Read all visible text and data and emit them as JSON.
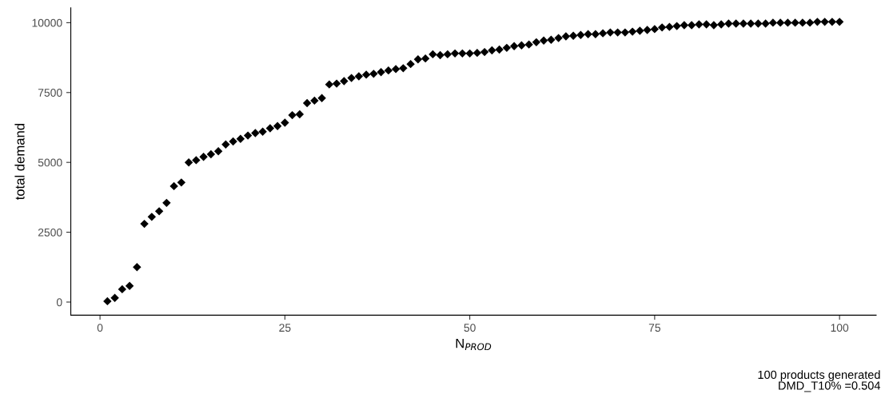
{
  "chart_data": {
    "type": "scatter",
    "xlabel": "N$_{PROD}$",
    "ylabel": "total demand",
    "x": [
      1,
      2,
      3,
      4,
      5,
      6,
      7,
      8,
      9,
      10,
      11,
      12,
      13,
      14,
      15,
      16,
      17,
      18,
      19,
      20,
      21,
      22,
      23,
      24,
      25,
      26,
      27,
      28,
      29,
      30,
      31,
      32,
      33,
      34,
      35,
      36,
      37,
      38,
      39,
      40,
      41,
      42,
      43,
      44,
      45,
      46,
      47,
      48,
      49,
      50,
      51,
      52,
      53,
      54,
      55,
      56,
      57,
      58,
      59,
      60,
      61,
      62,
      63,
      64,
      65,
      66,
      67,
      68,
      69,
      70,
      71,
      72,
      73,
      74,
      75,
      76,
      77,
      78,
      79,
      80,
      81,
      82,
      83,
      84,
      85,
      86,
      87,
      88,
      89,
      90,
      91,
      92,
      93,
      94,
      95,
      96,
      97,
      98,
      99,
      100
    ],
    "series": [
      {
        "color": "#000000",
        "values": [
          30,
          150,
          460,
          580,
          1250,
          2800,
          3050,
          3250,
          3550,
          4150,
          4280,
          5000,
          5080,
          5200,
          5290,
          5400,
          5640,
          5750,
          5840,
          5960,
          6050,
          6100,
          6220,
          6300,
          6420,
          6690,
          6720,
          7120,
          7210,
          7300,
          7790,
          7820,
          7910,
          8020,
          8080,
          8140,
          8170,
          8230,
          8290,
          8340,
          8370,
          8520,
          8690,
          8720,
          8870,
          8840,
          8870,
          8900,
          8900,
          8900,
          8920,
          8950,
          9010,
          9040,
          9100,
          9160,
          9190,
          9220,
          9300,
          9360,
          9390,
          9450,
          9510,
          9530,
          9560,
          9590,
          9590,
          9620,
          9650,
          9650,
          9650,
          9680,
          9710,
          9740,
          9770,
          9830,
          9850,
          9880,
          9910,
          9910,
          9940,
          9940,
          9910,
          9940,
          9970,
          9970,
          9970,
          9970,
          9970,
          9970,
          10000,
          10000,
          10000,
          10000,
          10000,
          10000,
          10030,
          10030,
          10030,
          10030
        ]
      }
    ],
    "marker": "diamond",
    "grid": false,
    "legend": false,
    "xlim": [
      -3.95,
      104.95
    ],
    "ylim": [
      -470,
      10530
    ],
    "xticks": [
      0,
      25,
      50,
      75,
      100
    ],
    "yticks": [
      0,
      2500,
      5000,
      7500,
      10000
    ],
    "annotations": [
      "100 products generated\nDMD_T10% =0.504"
    ]
  }
}
